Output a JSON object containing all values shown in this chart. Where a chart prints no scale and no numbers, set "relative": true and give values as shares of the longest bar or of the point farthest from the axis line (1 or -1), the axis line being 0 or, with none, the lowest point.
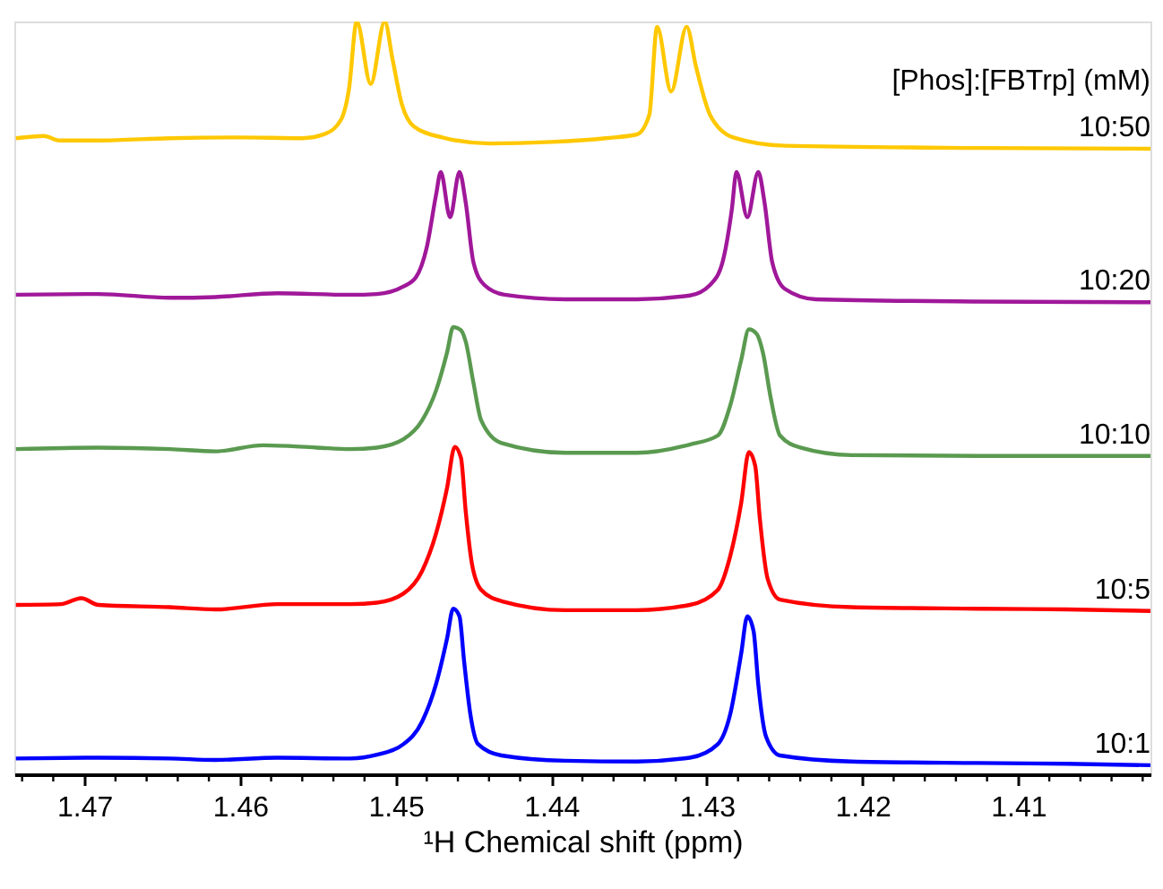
{
  "chart_data": {
    "type": "line",
    "relative": true,
    "xlabel": "¹H Chemical shift (ppm)",
    "legend_title": "[Phos]:[FBTrp] (mM)",
    "legend": false,
    "grid": false,
    "marker": "none",
    "line_style": "solid",
    "xlim": [
      1.4745,
      1.4015
    ],
    "xticks": [
      {
        "value": 1.474,
        "label": null
      },
      {
        "value": 1.472,
        "label": null
      },
      1.47,
      {
        "value": 1.468,
        "label": null
      },
      {
        "value": 1.466,
        "label": null
      },
      {
        "value": 1.464,
        "label": null
      },
      {
        "value": 1.462,
        "label": null
      },
      1.46,
      {
        "value": 1.458,
        "label": null
      },
      {
        "value": 1.456,
        "label": null
      },
      {
        "value": 1.454,
        "label": null
      },
      {
        "value": 1.452,
        "label": null
      },
      1.45,
      {
        "value": 1.448,
        "label": null
      },
      {
        "value": 1.446,
        "label": null
      },
      {
        "value": 1.444,
        "label": null
      },
      {
        "value": 1.442,
        "label": null
      },
      1.44,
      {
        "value": 1.438,
        "label": null
      },
      {
        "value": 1.436,
        "label": null
      },
      {
        "value": 1.434,
        "label": null
      },
      {
        "value": 1.432,
        "label": null
      },
      1.43,
      {
        "value": 1.428,
        "label": null
      },
      {
        "value": 1.426,
        "label": null
      },
      {
        "value": 1.424,
        "label": null
      },
      {
        "value": 1.422,
        "label": null
      },
      1.42,
      {
        "value": 1.418,
        "label": null
      },
      {
        "value": 1.416,
        "label": null
      },
      {
        "value": 1.414,
        "label": null
      },
      {
        "value": 1.412,
        "label": null
      },
      1.41,
      {
        "value": 1.408,
        "label": null
      },
      {
        "value": 1.406,
        "label": null
      },
      {
        "value": 1.404,
        "label": null
      },
      {
        "value": 1.402,
        "label": null
      }
    ],
    "series": [
      {
        "name": "10:1",
        "color": "#0000ff",
        "x": [
          1.4744,
          1.4691,
          1.4645,
          1.4616,
          1.4576,
          1.4529,
          1.4512,
          1.4495,
          1.4483,
          1.4474,
          1.4467,
          1.4463,
          1.4459,
          1.4456,
          1.4452,
          1.4447,
          1.4432,
          1.4391,
          1.4345,
          1.4311,
          1.4293,
          1.4285,
          1.4278,
          1.4274,
          1.427,
          1.4267,
          1.4262,
          1.4253,
          1.4207,
          1.4126,
          1.4069,
          1.4015
        ],
        "values": [
          0.021,
          0.022,
          0.021,
          0.019,
          0.022,
          0.021,
          0.026,
          0.04,
          0.07,
          0.12,
          0.18,
          0.22,
          0.21,
          0.15,
          0.08,
          0.04,
          0.025,
          0.018,
          0.017,
          0.022,
          0.04,
          0.08,
          0.16,
          0.21,
          0.19,
          0.12,
          0.05,
          0.025,
          0.017,
          0.015,
          0.014,
          0.012
        ]
      },
      {
        "name": "10:5",
        "color": "#ff0000",
        "x": [
          1.4744,
          1.4715,
          1.4702,
          1.4691,
          1.4645,
          1.4616,
          1.4576,
          1.4529,
          1.4512,
          1.4495,
          1.4483,
          1.4474,
          1.4467,
          1.4462,
          1.4458,
          1.4455,
          1.4451,
          1.4445,
          1.4432,
          1.4391,
          1.4345,
          1.4311,
          1.4293,
          1.4285,
          1.4278,
          1.4273,
          1.4269,
          1.4266,
          1.4261,
          1.4253,
          1.4207,
          1.4126,
          1.4069,
          1.4015
        ],
        "values": [
          0.225,
          0.226,
          0.234,
          0.225,
          0.222,
          0.219,
          0.226,
          0.226,
          0.228,
          0.24,
          0.27,
          0.32,
          0.38,
          0.435,
          0.42,
          0.35,
          0.28,
          0.245,
          0.23,
          0.218,
          0.218,
          0.225,
          0.245,
          0.29,
          0.36,
          0.428,
          0.41,
          0.34,
          0.26,
          0.232,
          0.222,
          0.22,
          0.219,
          0.217
        ]
      },
      {
        "name": "10:10",
        "color": "#5a9a50",
        "x": [
          1.4744,
          1.4691,
          1.4645,
          1.4616,
          1.4585,
          1.4551,
          1.4529,
          1.4512,
          1.4495,
          1.4483,
          1.4474,
          1.4467,
          1.4463,
          1.4458,
          1.4455,
          1.445,
          1.4445,
          1.4432,
          1.4391,
          1.4345,
          1.4311,
          1.4293,
          1.4285,
          1.4278,
          1.4273,
          1.4268,
          1.4264,
          1.4259,
          1.4253,
          1.424,
          1.4207,
          1.4126,
          1.4015
        ],
        "values": [
          0.432,
          0.434,
          0.432,
          0.429,
          0.437,
          0.434,
          0.432,
          0.434,
          0.445,
          0.47,
          0.51,
          0.56,
          0.594,
          0.59,
          0.575,
          0.52,
          0.47,
          0.44,
          0.427,
          0.427,
          0.438,
          0.45,
          0.49,
          0.55,
          0.591,
          0.585,
          0.56,
          0.5,
          0.45,
          0.434,
          0.424,
          0.423,
          0.423
        ]
      },
      {
        "name": "10:20",
        "color": "#a0189a",
        "x": [
          1.4744,
          1.4691,
          1.4645,
          1.4616,
          1.4576,
          1.4529,
          1.4512,
          1.4495,
          1.4487,
          1.448,
          1.4474,
          1.4471,
          1.4465,
          1.4459,
          1.4455,
          1.445,
          1.4443,
          1.443,
          1.4391,
          1.4345,
          1.4311,
          1.4298,
          1.429,
          1.4284,
          1.4281,
          1.4274,
          1.4267,
          1.4263,
          1.4258,
          1.425,
          1.423,
          1.4126,
          1.4015
        ],
        "values": [
          0.637,
          0.638,
          0.633,
          0.634,
          0.639,
          0.637,
          0.638,
          0.648,
          0.66,
          0.7,
          0.77,
          0.8,
          0.74,
          0.8,
          0.76,
          0.68,
          0.65,
          0.637,
          0.631,
          0.631,
          0.636,
          0.65,
          0.68,
          0.75,
          0.8,
          0.74,
          0.8,
          0.76,
          0.68,
          0.645,
          0.631,
          0.628,
          0.627
        ]
      },
      {
        "name": "10:50",
        "color": "#ffc800",
        "x": [
          1.4744,
          1.4726,
          1.4716,
          1.4691,
          1.4645,
          1.46,
          1.456,
          1.4545,
          1.4535,
          1.453,
          1.4525,
          1.4516,
          1.4507,
          1.4502,
          1.4496,
          1.4488,
          1.447,
          1.444,
          1.44,
          1.4365,
          1.4345,
          1.4337,
          1.4332,
          1.4323,
          1.4313,
          1.4307,
          1.4298,
          1.4283,
          1.425,
          1.4126,
          1.4015
        ],
        "values": [
          0.845,
          0.848,
          0.842,
          0.842,
          0.845,
          0.846,
          0.845,
          0.851,
          0.87,
          0.91,
          1.0,
          0.917,
          1.0,
          0.95,
          0.89,
          0.86,
          0.846,
          0.838,
          0.84,
          0.845,
          0.85,
          0.876,
          0.993,
          0.907,
          0.993,
          0.94,
          0.876,
          0.846,
          0.835,
          0.832,
          0.831
        ]
      }
    ]
  }
}
